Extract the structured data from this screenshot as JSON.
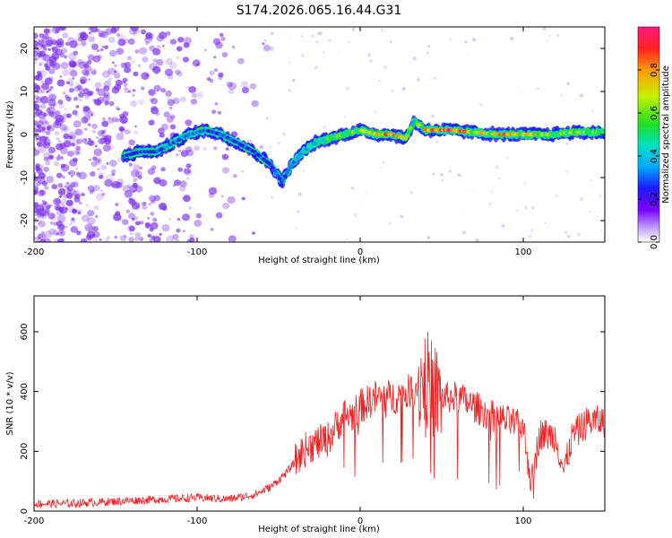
{
  "title": "S174.2026.065.16.44.G31",
  "colors": {
    "snr_line": "#ee2222",
    "frame": "#000000",
    "scatter": "#7a2ef0"
  },
  "chart_data": [
    {
      "type": "heatmap",
      "name": "spectrogram",
      "xlabel": "Height of straight line (km)",
      "ylabel": "Frequency (Hz)",
      "xlim": [
        -200,
        150
      ],
      "ylim": [
        -25,
        25
      ],
      "xticks": [
        -200,
        -100,
        0,
        100
      ],
      "yticks": [
        -20,
        -10,
        0,
        10,
        20
      ],
      "colorbar": {
        "label": "Normalized spectral amplitude",
        "range": [
          0.0,
          1.0
        ],
        "ticks": [
          "0.0",
          "0.2",
          "0.4",
          "0.6",
          "0.8"
        ],
        "ticklabels": [
          "0.0",
          "0.2",
          "0.4",
          "0.6",
          "0.8"
        ]
      },
      "ridge": [
        {
          "x": -145,
          "y": -5,
          "a": 0.3
        },
        {
          "x": -135,
          "y": -4,
          "a": 0.3
        },
        {
          "x": -125,
          "y": -4,
          "a": 0.3
        },
        {
          "x": -115,
          "y": -2,
          "a": 0.35
        },
        {
          "x": -105,
          "y": 0,
          "a": 0.35
        },
        {
          "x": -95,
          "y": 1,
          "a": 0.35
        },
        {
          "x": -85,
          "y": 0,
          "a": 0.3
        },
        {
          "x": -75,
          "y": -2,
          "a": 0.3
        },
        {
          "x": -65,
          "y": -4,
          "a": 0.3
        },
        {
          "x": -55,
          "y": -7,
          "a": 0.3
        },
        {
          "x": -48,
          "y": -11,
          "a": 0.3
        },
        {
          "x": -42,
          "y": -7,
          "a": 0.35
        },
        {
          "x": -35,
          "y": -4,
          "a": 0.4
        },
        {
          "x": -28,
          "y": -2,
          "a": 0.45
        },
        {
          "x": -20,
          "y": -1,
          "a": 0.55
        },
        {
          "x": -10,
          "y": 0,
          "a": 0.6
        },
        {
          "x": 0,
          "y": 1,
          "a": 0.65
        },
        {
          "x": 10,
          "y": 0,
          "a": 0.8
        },
        {
          "x": 20,
          "y": 0,
          "a": 0.9
        },
        {
          "x": 28,
          "y": -1,
          "a": 0.7
        },
        {
          "x": 33,
          "y": 3,
          "a": 0.5
        },
        {
          "x": 40,
          "y": 1,
          "a": 0.8
        },
        {
          "x": 55,
          "y": 1,
          "a": 0.95
        },
        {
          "x": 70,
          "y": 0.5,
          "a": 0.7
        },
        {
          "x": 85,
          "y": 0,
          "a": 0.8
        },
        {
          "x": 100,
          "y": 0,
          "a": 0.75
        },
        {
          "x": 115,
          "y": 0,
          "a": 0.7
        },
        {
          "x": 130,
          "y": 0.5,
          "a": 0.65
        },
        {
          "x": 150,
          "y": 0.5,
          "a": 0.6
        }
      ]
    },
    {
      "type": "line",
      "name": "snr",
      "xlabel": "Height of straight line (km)",
      "ylabel": "SNR (10 * v/v)",
      "xlim": [
        -200,
        150
      ],
      "ylim": [
        0,
        720
      ],
      "xticks": [
        -200,
        -100,
        0,
        100
      ],
      "yticks": [
        0,
        200,
        400,
        600
      ],
      "series": [
        {
          "name": "SNR",
          "x": [
            -200,
            -180,
            -160,
            -140,
            -120,
            -100,
            -80,
            -65,
            -55,
            -45,
            -35,
            -30,
            -25,
            -20,
            -15,
            -10,
            -5,
            0,
            10,
            20,
            30,
            35,
            40,
            45,
            50,
            60,
            70,
            80,
            90,
            100,
            105,
            110,
            120,
            125,
            130,
            140,
            150
          ],
          "values": [
            25,
            25,
            30,
            35,
            40,
            45,
            40,
            55,
            80,
            130,
            200,
            220,
            230,
            240,
            280,
            320,
            320,
            350,
            380,
            380,
            400,
            420,
            450,
            400,
            380,
            380,
            350,
            320,
            300,
            280,
            90,
            260,
            250,
            130,
            250,
            300,
            300
          ]
        }
      ]
    }
  ]
}
